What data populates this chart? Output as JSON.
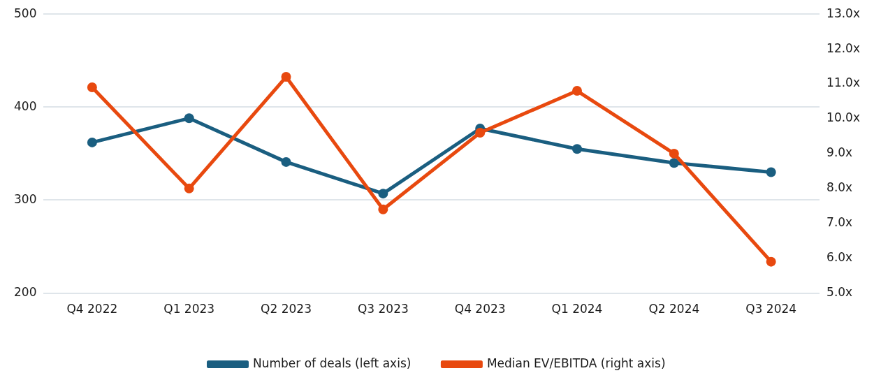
{
  "chart_data": {
    "type": "line",
    "categories": [
      "Q4 2022",
      "Q1 2023",
      "Q2 2023",
      "Q3 2023",
      "Q4 2023",
      "Q1 2024",
      "Q2 2024",
      "Q3 2024"
    ],
    "series": [
      {
        "name": "Number of deals (left axis)",
        "color": "#1a5e80",
        "values": [
          362,
          388,
          341,
          307,
          377,
          355,
          340,
          330
        ]
      },
      {
        "name": "Median EV/EBITDA (right axis)",
        "color": "#e8490f",
        "axis": "y2",
        "values": [
          10.9,
          8.0,
          11.2,
          7.4,
          9.6,
          10.8,
          9.0,
          5.9
        ]
      }
    ],
    "ylim": [
      200,
      500
    ],
    "yticks": [
      200,
      300,
      400,
      500
    ],
    "y2lim": [
      5,
      13
    ],
    "y2ticks": [
      {
        "value": 5,
        "label": "5.0x"
      },
      {
        "value": 6,
        "label": "6.0x"
      },
      {
        "value": 7,
        "label": "7.0x"
      },
      {
        "value": 8,
        "label": "8.0x"
      },
      {
        "value": 9,
        "label": "9.0x"
      },
      {
        "value": 10,
        "label": "10.0x"
      },
      {
        "value": 11,
        "label": "11.0x"
      },
      {
        "value": 12,
        "label": "12.0x"
      },
      {
        "value": 13,
        "label": "13.0x"
      }
    ],
    "grid": "y",
    "legend": "bottom",
    "marker": "circle",
    "line_style": "solid"
  }
}
